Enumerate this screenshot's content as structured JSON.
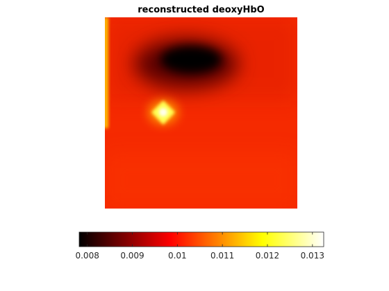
{
  "chart_data": {
    "type": "heatmap",
    "title": "reconstructed deoxyHbO",
    "xlabel": "",
    "ylabel": "",
    "axes_visible": false,
    "colormap": "hot",
    "colorbar": {
      "orientation": "horizontal",
      "placement": "bottom",
      "range": [
        0.00782,
        0.01325
      ],
      "ticks": [
        0.008,
        0.009,
        0.01,
        0.011,
        0.012,
        0.013
      ],
      "tick_labels": [
        "0.008",
        "0.009",
        "0.01",
        "0.011",
        "0.012",
        "0.013"
      ]
    },
    "background_value": 0.0101,
    "features": [
      {
        "name": "dark region",
        "row": 0.22,
        "col": 0.43,
        "value": 0.0078
      },
      {
        "name": "bright spot",
        "row": 0.5,
        "col": 0.3,
        "value": 0.0132
      },
      {
        "name": "bright left edge",
        "col": 0.01,
        "value": 0.0115
      }
    ]
  }
}
